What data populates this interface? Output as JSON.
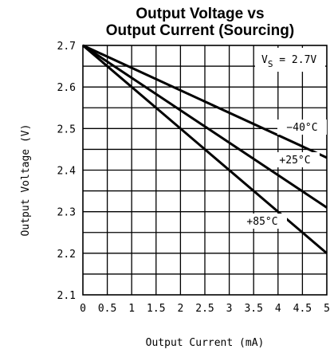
{
  "chart_data": {
    "type": "line",
    "title_line1": "Output Voltage vs",
    "title_line2": "Output Current (Sourcing)",
    "xlabel": "Output Current (mA)",
    "ylabel": "Output Voltage (V)",
    "xlim": [
      0,
      5
    ],
    "ylim": [
      2.1,
      2.7
    ],
    "grid": true,
    "x_ticks": [
      "0",
      "0.5",
      "1",
      "1.5",
      "2",
      "2.5",
      "3",
      "3.5",
      "4",
      "4.5",
      "5"
    ],
    "y_ticks": [
      "2.1",
      "2.2",
      "2.3",
      "2.4",
      "2.5",
      "2.6",
      "2.7"
    ],
    "condition_label": {
      "prefix": "V",
      "sub": "S",
      "suffix": " = 2.7V"
    },
    "series": [
      {
        "name": "−40°C",
        "x": [
          0,
          5
        ],
        "y": [
          2.7,
          2.43
        ]
      },
      {
        "name": "+25°C",
        "x": [
          0,
          5
        ],
        "y": [
          2.7,
          2.31
        ]
      },
      {
        "name": "+85°C",
        "x": [
          0,
          5
        ],
        "y": [
          2.7,
          2.2
        ]
      }
    ]
  }
}
